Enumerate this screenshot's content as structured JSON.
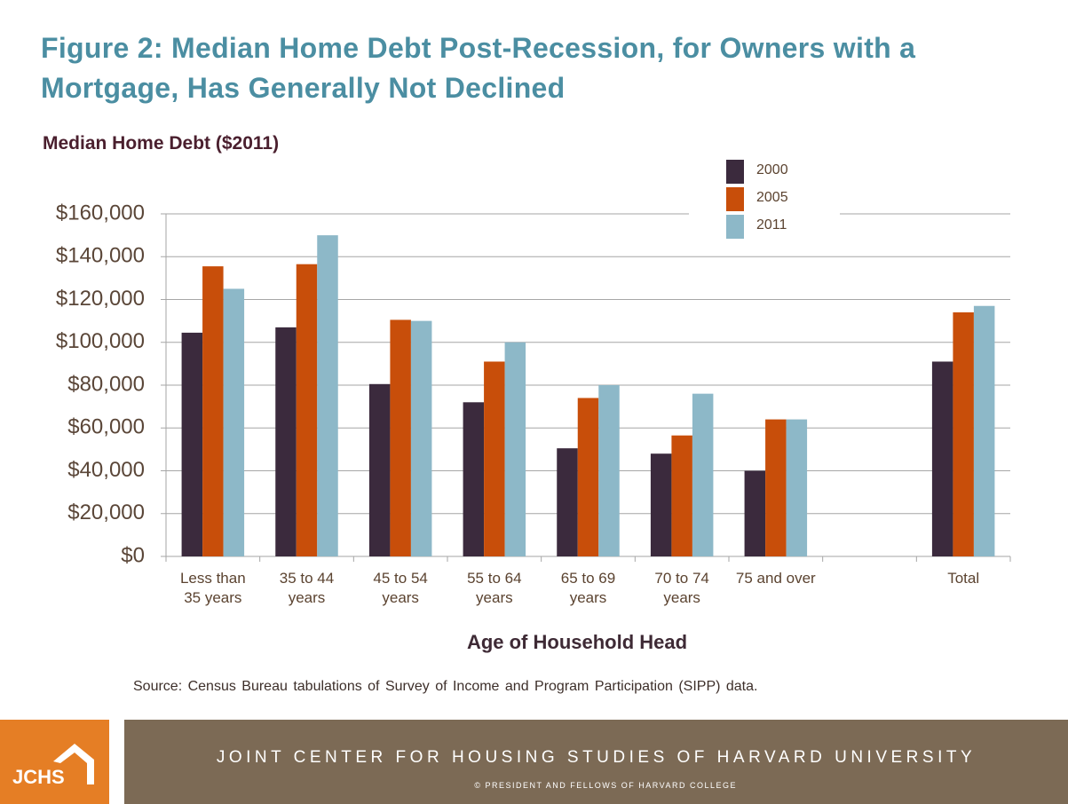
{
  "chart_data": {
    "type": "bar",
    "title": "Figure 2: Median Home Debt Post-Recession, for Owners with a Mortgage, Has Generally Not Declined",
    "y_axis_label": "Median Home Debt ($2011)",
    "x_axis_label": "Age of Household Head",
    "categories": [
      "Less than 35 years",
      "35 to 44 years",
      "45 to 54 years",
      "55 to 64 years",
      "65 to 69 years",
      "70 to 74 years",
      "75 and over",
      null,
      "Total"
    ],
    "series": [
      {
        "name": "2000",
        "color": "#3b2a3d",
        "values": [
          104500,
          107000,
          80500,
          72000,
          50500,
          48000,
          40000,
          null,
          91000
        ]
      },
      {
        "name": "2005",
        "color": "#c84e0a",
        "values": [
          135500,
          136500,
          110500,
          91000,
          74000,
          56500,
          64000,
          null,
          114000
        ]
      },
      {
        "name": "2011",
        "color": "#8db8c8",
        "values": [
          125000,
          150000,
          110000,
          100000,
          80000,
          76000,
          64000,
          null,
          117000
        ]
      }
    ],
    "ylim": [
      0,
      160000
    ],
    "yticks": [
      {
        "value": 0,
        "label": "$0"
      },
      {
        "value": 20000,
        "label": "$20,000"
      },
      {
        "value": 40000,
        "label": "$40,000"
      },
      {
        "value": 60000,
        "label": "$60,000"
      },
      {
        "value": 80000,
        "label": "$80,000"
      },
      {
        "value": 100000,
        "label": "$100,000"
      },
      {
        "value": 120000,
        "label": "$120,000"
      },
      {
        "value": 140000,
        "label": "$140,000"
      },
      {
        "value": 160000,
        "label": "$160,000"
      }
    ],
    "grid": true,
    "legend": "top-right",
    "source": "Source: Census Bureau tabulations of Survey of Income and Program Participation (SIPP) data."
  },
  "footer": {
    "logo": "JCHS",
    "organization": "JOINT CENTER FOR HOUSING STUDIES OF HARVARD UNIVERSITY",
    "copyright": "© PRESIDENT AND FELLOWS OF HARVARD COLLEGE"
  }
}
